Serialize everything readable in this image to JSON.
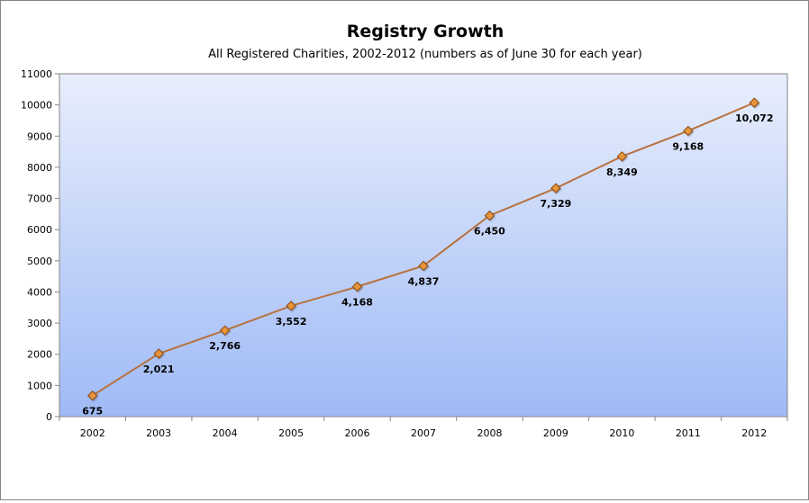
{
  "chart_data": {
    "type": "line",
    "title": "Registry Growth",
    "subtitle": "All Registered Charities, 2002-2012 (numbers as of June 30 for each year)",
    "xlabel": "",
    "ylabel": "",
    "categories": [
      "2002",
      "2003",
      "2004",
      "2005",
      "2006",
      "2007",
      "2008",
      "2009",
      "2010",
      "2011",
      "2012"
    ],
    "series": [
      {
        "name": "All Registered Charities",
        "values": [
          675,
          2021,
          2766,
          3552,
          4168,
          4837,
          6450,
          7329,
          8349,
          9168,
          10072
        ],
        "labels": [
          "675",
          "2,021",
          "2,766",
          "3,552",
          "4,168",
          "4,837",
          "6,450",
          "7,329",
          "8,349",
          "9,168",
          "10,072"
        ]
      }
    ],
    "ylim": [
      0,
      11000
    ],
    "yticks": [
      0,
      1000,
      2000,
      3000,
      4000,
      5000,
      6000,
      7000,
      8000,
      9000,
      10000,
      11000
    ],
    "legend": "none",
    "grid": false,
    "colors": {
      "line": "#B8713E",
      "marker_fill": "#E8943A",
      "marker_stroke": "#8B4A14",
      "plot_top": "#E8EEFC",
      "plot_bottom": "#9FBAF6",
      "axis": "#868686"
    }
  }
}
